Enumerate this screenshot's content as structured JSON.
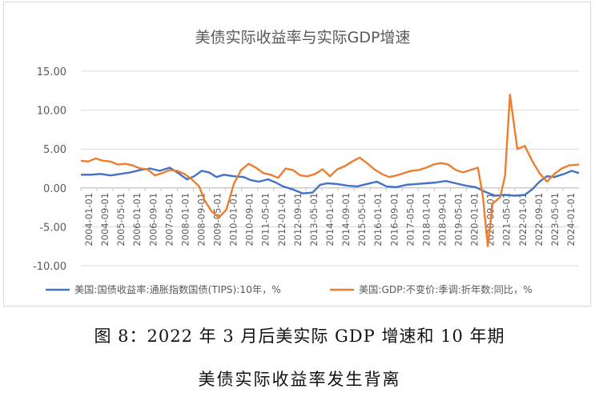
{
  "caption": {
    "line1": "图 8：2022 年 3 月后美实际 GDP 增速和 10 年期",
    "line2": "美债实际收益率发生背离"
  },
  "chart_data": {
    "type": "line",
    "title": "美债实际收益率与实际GDP增速",
    "ylim": [
      -10,
      15
    ],
    "yticks": [
      "15.00",
      "10.00",
      "5.00",
      "0.00",
      "-5.00",
      "-10.00"
    ],
    "ytick_values": [
      15,
      10,
      5,
      0,
      -5,
      -10
    ],
    "xtick_labels": [
      "2004-01-01",
      "2004-09-01",
      "2005-05-01",
      "2006-01-01",
      "2006-09-01",
      "2007-05-01",
      "2008-01-01",
      "2008-09-01",
      "2009-05-01",
      "2010-01-01",
      "2010-09-01",
      "2011-05-01",
      "2012-01-01",
      "2012-09-01",
      "2013-05-01",
      "2014-01-01",
      "2014-09-01",
      "2015-05-01",
      "2016-01-01",
      "2016-09-01",
      "2017-05-01",
      "2018-01-01",
      "2018-09-01",
      "2019-05-01",
      "2020-01-01",
      "2020-09-01",
      "2021-05-01",
      "2022-01-01",
      "2022-09-01",
      "2023-05-01",
      "2024-01-01"
    ],
    "x_start": 2004.0,
    "x_end": 2024.2,
    "legend_position": "bottom",
    "series": [
      {
        "name": "美国:国债收益率:通胀指数国债(TIPS):10年，%",
        "color": "#4472c4",
        "points": [
          [
            2004.0,
            1.7
          ],
          [
            2004.4,
            1.7
          ],
          [
            2004.8,
            1.8
          ],
          [
            2005.2,
            1.6
          ],
          [
            2005.6,
            1.8
          ],
          [
            2006.0,
            2.0
          ],
          [
            2006.4,
            2.3
          ],
          [
            2006.8,
            2.5
          ],
          [
            2007.2,
            2.2
          ],
          [
            2007.6,
            2.6
          ],
          [
            2008.0,
            1.8
          ],
          [
            2008.3,
            1.1
          ],
          [
            2008.6,
            1.5
          ],
          [
            2008.9,
            2.2
          ],
          [
            2009.2,
            2.0
          ],
          [
            2009.5,
            1.4
          ],
          [
            2009.8,
            1.7
          ],
          [
            2010.2,
            1.5
          ],
          [
            2010.6,
            1.4
          ],
          [
            2010.9,
            1.0
          ],
          [
            2011.2,
            0.8
          ],
          [
            2011.6,
            1.1
          ],
          [
            2011.9,
            0.7
          ],
          [
            2012.2,
            0.2
          ],
          [
            2012.6,
            -0.2
          ],
          [
            2013.0,
            -0.7
          ],
          [
            2013.4,
            -0.6
          ],
          [
            2013.7,
            0.4
          ],
          [
            2014.0,
            0.6
          ],
          [
            2014.4,
            0.5
          ],
          [
            2014.8,
            0.3
          ],
          [
            2015.2,
            0.2
          ],
          [
            2015.6,
            0.5
          ],
          [
            2016.0,
            0.8
          ],
          [
            2016.4,
            0.2
          ],
          [
            2016.8,
            0.1
          ],
          [
            2017.2,
            0.4
          ],
          [
            2017.6,
            0.5
          ],
          [
            2018.0,
            0.6
          ],
          [
            2018.4,
            0.7
          ],
          [
            2018.8,
            0.9
          ],
          [
            2019.2,
            0.6
          ],
          [
            2019.6,
            0.3
          ],
          [
            2020.0,
            0.1
          ],
          [
            2020.4,
            -0.5
          ],
          [
            2020.8,
            -1.0
          ],
          [
            2021.2,
            -0.9
          ],
          [
            2021.6,
            -1.0
          ],
          [
            2022.0,
            -0.9
          ],
          [
            2022.3,
            -0.2
          ],
          [
            2022.6,
            0.8
          ],
          [
            2022.9,
            1.5
          ],
          [
            2023.2,
            1.4
          ],
          [
            2023.6,
            1.8
          ],
          [
            2023.9,
            2.2
          ],
          [
            2024.2,
            1.9
          ]
        ]
      },
      {
        "name": "美国:GDP:不变价:季调:折年数:同比，%",
        "color": "#ed7d31",
        "points": [
          [
            2004.0,
            3.5
          ],
          [
            2004.3,
            3.4
          ],
          [
            2004.6,
            3.8
          ],
          [
            2004.9,
            3.5
          ],
          [
            2005.2,
            3.4
          ],
          [
            2005.5,
            3.0
          ],
          [
            2005.8,
            3.1
          ],
          [
            2006.1,
            2.9
          ],
          [
            2006.4,
            2.5
          ],
          [
            2006.7,
            2.4
          ],
          [
            2007.0,
            1.6
          ],
          [
            2007.3,
            1.9
          ],
          [
            2007.6,
            2.3
          ],
          [
            2007.9,
            2.2
          ],
          [
            2008.2,
            1.8
          ],
          [
            2008.5,
            1.1
          ],
          [
            2008.8,
            0.2
          ],
          [
            2009.0,
            -1.5
          ],
          [
            2009.3,
            -3.0
          ],
          [
            2009.6,
            -3.8
          ],
          [
            2009.9,
            -2.8
          ],
          [
            2010.2,
            0.5
          ],
          [
            2010.5,
            2.3
          ],
          [
            2010.8,
            3.1
          ],
          [
            2011.1,
            2.6
          ],
          [
            2011.4,
            1.9
          ],
          [
            2011.7,
            1.7
          ],
          [
            2012.0,
            1.3
          ],
          [
            2012.3,
            2.5
          ],
          [
            2012.6,
            2.3
          ],
          [
            2012.9,
            1.6
          ],
          [
            2013.2,
            1.5
          ],
          [
            2013.5,
            1.8
          ],
          [
            2013.8,
            2.4
          ],
          [
            2014.1,
            1.5
          ],
          [
            2014.4,
            2.4
          ],
          [
            2014.7,
            2.8
          ],
          [
            2015.0,
            3.4
          ],
          [
            2015.3,
            3.9
          ],
          [
            2015.6,
            3.2
          ],
          [
            2015.9,
            2.4
          ],
          [
            2016.2,
            1.8
          ],
          [
            2016.5,
            1.4
          ],
          [
            2016.8,
            1.6
          ],
          [
            2017.1,
            1.9
          ],
          [
            2017.4,
            2.2
          ],
          [
            2017.7,
            2.3
          ],
          [
            2018.0,
            2.6
          ],
          [
            2018.3,
            3.0
          ],
          [
            2018.6,
            3.2
          ],
          [
            2018.9,
            3.0
          ],
          [
            2019.2,
            2.3
          ],
          [
            2019.5,
            2.0
          ],
          [
            2019.8,
            2.3
          ],
          [
            2020.1,
            2.6
          ],
          [
            2020.3,
            -1.0
          ],
          [
            2020.5,
            -7.5
          ],
          [
            2020.7,
            -2.0
          ],
          [
            2021.0,
            -1.2
          ],
          [
            2021.2,
            1.5
          ],
          [
            2021.4,
            12.0
          ],
          [
            2021.7,
            5.0
          ],
          [
            2022.0,
            5.4
          ],
          [
            2022.3,
            3.5
          ],
          [
            2022.6,
            1.9
          ],
          [
            2022.9,
            0.8
          ],
          [
            2023.2,
            1.8
          ],
          [
            2023.5,
            2.5
          ],
          [
            2023.8,
            2.9
          ],
          [
            2024.2,
            3.0
          ]
        ]
      }
    ]
  }
}
